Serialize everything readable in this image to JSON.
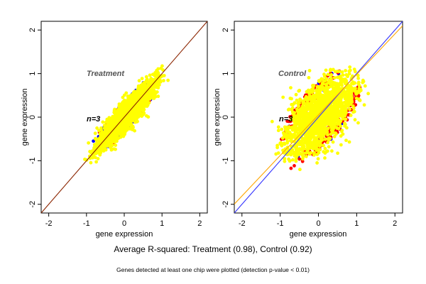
{
  "caption": {
    "main": "Average R-squared: Treatment (0.98), Control (0.92)",
    "note": "Genes detected at least one chip were plotted (detection p-value < 0.01)"
  },
  "colors": {
    "yellow": "#ffff00",
    "red": "#ff0000",
    "blue": "#0000ff",
    "orange_line": "#ffa500",
    "fit_line_treatment": "#8b2500",
    "diag_line_control": "#3333ff"
  },
  "chart_data": [
    {
      "type": "scatter",
      "title": "Treatment",
      "annotation": "n=3",
      "xlabel": "gene expression",
      "ylabel": "gene expression",
      "xlim": [
        -2.2,
        2.2
      ],
      "ylim": [
        -2.2,
        2.2
      ],
      "xticks": [
        -2,
        -1,
        0,
        1,
        2
      ],
      "yticks": [
        -2,
        -1,
        0,
        1,
        2
      ],
      "grid": false,
      "point_cloud": {
        "x_range": [
          -1.1,
          1.2
        ],
        "y_range": [
          -1.1,
          1.2
        ],
        "spread": 0.13
      },
      "lines": [
        {
          "name": "fit",
          "slope": 1.0,
          "intercept": 0.0,
          "color": "#8b2500"
        }
      ],
      "series": [
        {
          "color": "yellow"
        },
        {
          "color": "blue"
        },
        {
          "color": "red"
        }
      ]
    },
    {
      "type": "scatter",
      "title": "Control",
      "annotation": "n=3",
      "xlabel": "gene expression",
      "ylabel": "gene expression",
      "xlim": [
        -2.2,
        2.2
      ],
      "ylim": [
        -2.2,
        2.2
      ],
      "xticks": [
        -2,
        -1,
        0,
        1,
        2
      ],
      "yticks": [
        -2,
        -1,
        0,
        1,
        2
      ],
      "grid": false,
      "point_cloud": {
        "x_range": [
          -1.1,
          1.2
        ],
        "y_range": [
          -1.1,
          1.2
        ],
        "spread": 0.3
      },
      "lines": [
        {
          "name": "diagonal",
          "slope": 1.0,
          "intercept": 0.0,
          "color": "#3333ff"
        },
        {
          "name": "fit",
          "slope": 0.93,
          "intercept": 0.05,
          "color": "#ffa500"
        }
      ],
      "series": [
        {
          "color": "yellow"
        },
        {
          "color": "red"
        },
        {
          "color": "blue"
        }
      ]
    }
  ]
}
